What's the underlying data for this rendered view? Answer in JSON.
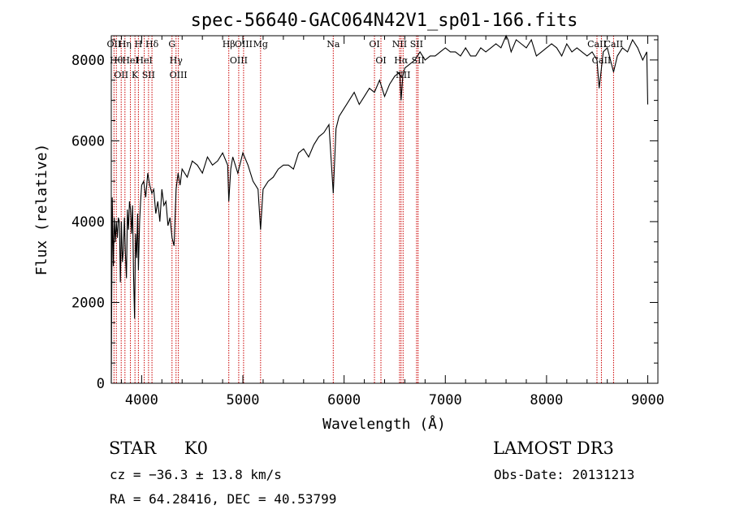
{
  "chart_data": {
    "type": "line",
    "title": "spec-56640-GAC064N42V1_sp01-166.fits",
    "xlabel": "Wavelength (Å)",
    "ylabel": "Flux (relative)",
    "xlim": [
      3700,
      9100
    ],
    "ylim": [
      0,
      8600
    ],
    "xticks": [
      4000,
      5000,
      6000,
      7000,
      8000,
      9000
    ],
    "yticks": [
      0,
      2000,
      4000,
      6000,
      8000
    ],
    "grid": false,
    "series_color": "#000000",
    "line_color": "#cc0000",
    "x": [
      3700,
      3710,
      3720,
      3730,
      3740,
      3750,
      3760,
      3770,
      3780,
      3790,
      3800,
      3810,
      3820,
      3830,
      3840,
      3850,
      3860,
      3870,
      3880,
      3890,
      3900,
      3910,
      3920,
      3930,
      3940,
      3950,
      3960,
      3968,
      3980,
      3990,
      4000,
      4020,
      4040,
      4060,
      4080,
      4101,
      4120,
      4140,
      4160,
      4180,
      4200,
      4220,
      4240,
      4260,
      4280,
      4300,
      4320,
      4340,
      4360,
      4380,
      4400,
      4450,
      4500,
      4550,
      4600,
      4650,
      4700,
      4750,
      4800,
      4850,
      4861,
      4880,
      4900,
      4950,
      5000,
      5050,
      5100,
      5150,
      5175,
      5200,
      5250,
      5300,
      5350,
      5400,
      5450,
      5500,
      5550,
      5600,
      5650,
      5700,
      5750,
      5800,
      5850,
      5893,
      5920,
      5950,
      6000,
      6050,
      6100,
      6150,
      6200,
      6250,
      6300,
      6350,
      6400,
      6450,
      6500,
      6550,
      6563,
      6580,
      6600,
      6650,
      6700,
      6750,
      6800,
      6850,
      6900,
      6950,
      7000,
      7050,
      7100,
      7150,
      7200,
      7250,
      7300,
      7350,
      7400,
      7450,
      7500,
      7550,
      7600,
      7620,
      7650,
      7700,
      7750,
      7800,
      7850,
      7900,
      7950,
      8000,
      8050,
      8100,
      8150,
      8200,
      8250,
      8300,
      8350,
      8400,
      8450,
      8498,
      8520,
      8542,
      8560,
      8600,
      8662,
      8700,
      8750,
      8800,
      8850,
      8900,
      8950,
      8990,
      9000
    ],
    "y": [
      0,
      4600,
      2900,
      4100,
      3500,
      4000,
      3600,
      4100,
      4000,
      2500,
      4000,
      3000,
      3300,
      4100,
      3200,
      2600,
      4300,
      3800,
      4500,
      4300,
      3700,
      4400,
      2700,
      1600,
      3700,
      3100,
      4200,
      2800,
      4000,
      4500,
      4900,
      5000,
      4600,
      5200,
      4900,
      4700,
      4800,
      4200,
      4500,
      4000,
      4800,
      4400,
      4500,
      3900,
      4100,
      3600,
      3400,
      4800,
      5200,
      4900,
      5300,
      5100,
      5500,
      5400,
      5200,
      5600,
      5400,
      5500,
      5700,
      5400,
      4500,
      5300,
      5600,
      5200,
      5700,
      5400,
      5000,
      4800,
      3800,
      4800,
      5000,
      5100,
      5300,
      5400,
      5400,
      5300,
      5700,
      5800,
      5600,
      5900,
      6100,
      6200,
      6400,
      4700,
      6300,
      6600,
      6800,
      7000,
      7200,
      6900,
      7100,
      7300,
      7200,
      7500,
      7100,
      7400,
      7600,
      7700,
      7000,
      7600,
      7800,
      7900,
      8000,
      8200,
      8000,
      8100,
      8100,
      8200,
      8300,
      8200,
      8200,
      8100,
      8300,
      8100,
      8100,
      8300,
      8200,
      8300,
      8400,
      8300,
      8600,
      8500,
      8200,
      8500,
      8400,
      8300,
      8500,
      8100,
      8200,
      8300,
      8400,
      8300,
      8100,
      8400,
      8200,
      8300,
      8200,
      8100,
      8200,
      8000,
      7300,
      7800,
      8200,
      8300,
      7700,
      8100,
      8300,
      8200,
      8500,
      8300,
      8000,
      8200,
      6900
    ],
    "lines": [
      {
        "x": 3727,
        "label": "OII"
      },
      {
        "x": 3750,
        "label": "Hθ"
      },
      {
        "x": 3798,
        "label": "OII"
      },
      {
        "x": 3835,
        "label": "Hη"
      },
      {
        "x": 3889,
        "label": "HeI"
      },
      {
        "x": 3934,
        "label": "K"
      },
      {
        "x": 3968,
        "label": "H"
      },
      {
        "x": 4026,
        "label": "HeI"
      },
      {
        "x": 4068,
        "label": "SII"
      },
      {
        "x": 4102,
        "label": "Hδ"
      },
      {
        "x": 4300,
        "label": "G"
      },
      {
        "x": 4340,
        "label": "Hγ"
      },
      {
        "x": 4363,
        "label": "OIII"
      },
      {
        "x": 4861,
        "label": "Hβ"
      },
      {
        "x": 4959,
        "label": "OIII"
      },
      {
        "x": 5007,
        "label": "OIII"
      },
      {
        "x": 5175,
        "label": "Mg"
      },
      {
        "x": 5893,
        "label": "Na"
      },
      {
        "x": 6300,
        "label": "OI"
      },
      {
        "x": 6364,
        "label": "OI"
      },
      {
        "x": 6548,
        "label": "NII"
      },
      {
        "x": 6563,
        "label": "Hα"
      },
      {
        "x": 6583,
        "label": "NII"
      },
      {
        "x": 6716,
        "label": "SII"
      },
      {
        "x": 6731,
        "label": "SII"
      },
      {
        "x": 8498,
        "label": "CaII"
      },
      {
        "x": 8542,
        "label": "CaII"
      },
      {
        "x": 8662,
        "label": "CaII"
      }
    ]
  },
  "info": {
    "class": "STAR",
    "subclass": "K0",
    "survey": "LAMOST DR3",
    "cz": "cz = −36.3 ± 13.8 km/s",
    "obs_date": "Obs-Date: 20131213",
    "coords": "RA =  64.28416, DEC =  40.53799"
  }
}
